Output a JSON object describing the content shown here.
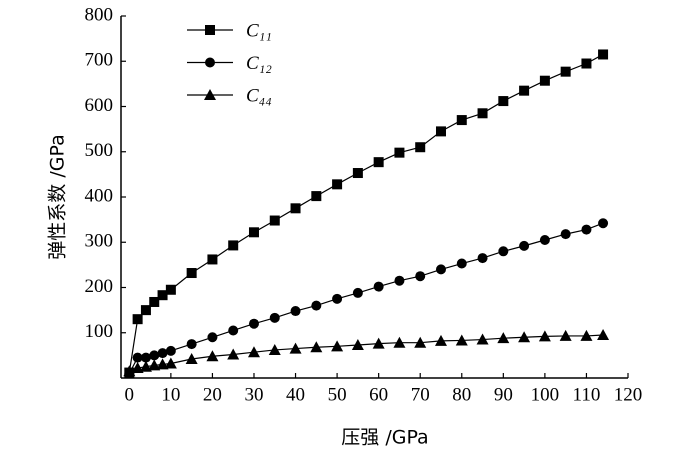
{
  "chart_data": {
    "type": "line",
    "x_label": "压强 /GPa",
    "y_label": "弹性系数 /GPa",
    "x": [
      0,
      2,
      4,
      6,
      8,
      10,
      15,
      20,
      25,
      30,
      35,
      40,
      45,
      50,
      55,
      60,
      65,
      70,
      75,
      80,
      85,
      90,
      95,
      100,
      105,
      110,
      114
    ],
    "series": [
      {
        "name": "C₁₁",
        "color": "#000000",
        "marker": "square",
        "values": [
          12,
          130,
          150,
          168,
          183,
          195,
          232,
          262,
          293,
          322,
          348,
          375,
          402,
          428,
          453,
          477,
          498,
          510,
          545,
          570,
          585,
          612,
          635,
          657,
          677,
          695,
          715
        ]
      },
      {
        "name": "C₁₂",
        "color": "#000000",
        "marker": "circle",
        "values": [
          10,
          45,
          45,
          50,
          55,
          60,
          75,
          90,
          105,
          120,
          133,
          148,
          160,
          175,
          188,
          202,
          215,
          225,
          240,
          253,
          265,
          280,
          292,
          305,
          318,
          328,
          342
        ]
      },
      {
        "name": "C₄₄",
        "color": "#000000",
        "marker": "triangle",
        "values": [
          15,
          22,
          25,
          28,
          30,
          32,
          42,
          48,
          52,
          57,
          62,
          65,
          68,
          70,
          73,
          76,
          78,
          78,
          82,
          83,
          85,
          88,
          90,
          92,
          93,
          93,
          95
        ]
      }
    ],
    "xlim": [
      -2,
      120
    ],
    "xticks": [
      0,
      10,
      20,
      30,
      40,
      50,
      60,
      70,
      80,
      90,
      100,
      110,
      120
    ],
    "ylim": [
      0,
      800
    ],
    "yticks": [
      100,
      200,
      300,
      400,
      500,
      600,
      700,
      800
    ],
    "legend": "upper left"
  }
}
